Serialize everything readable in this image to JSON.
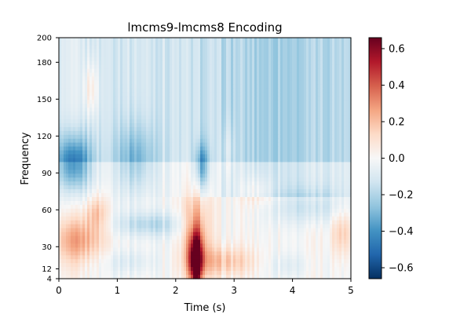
{
  "chart_data": {
    "type": "heatmap",
    "title": "lmcms9-lmcms8 Encoding",
    "xlabel": "Time (s)",
    "ylabel": "Frequency",
    "xlim": [
      0,
      5
    ],
    "ylim": [
      4,
      200
    ],
    "x_ticks": [
      0,
      1,
      2,
      3,
      4,
      5
    ],
    "y_ticks": [
      4,
      12,
      30,
      60,
      90,
      120,
      150,
      180,
      200
    ],
    "x_tick_labels": [
      "0",
      "1",
      "2",
      "3",
      "4",
      "5"
    ],
    "y_tick_labels": [
      "4",
      "12",
      "30",
      "60",
      "90",
      "120",
      "150",
      "180",
      "200"
    ],
    "colormap": "RdBu_r",
    "vmin": -0.66,
    "vmax": 0.66,
    "colorbar_ticks": [
      0.6,
      0.4,
      0.2,
      0.0,
      -0.2,
      -0.4,
      -0.6
    ],
    "colorbar_tick_labels": [
      "0.6",
      "0.4",
      "0.2",
      "0.0",
      "−0.2",
      "−0.4",
      "−0.6"
    ],
    "grid": false,
    "features": [
      {
        "time": 2.35,
        "frequency": 20,
        "value": 0.66
      },
      {
        "time": 0.3,
        "frequency": 95,
        "value": -0.4
      },
      {
        "time": 2.45,
        "frequency": 95,
        "value": -0.3
      },
      {
        "time": 0.5,
        "frequency": 155,
        "value": 0.15
      },
      {
        "time": 0.4,
        "frequency": 35,
        "value": 0.25
      },
      {
        "time": 4.8,
        "frequency": 40,
        "value": 0.2
      }
    ]
  }
}
